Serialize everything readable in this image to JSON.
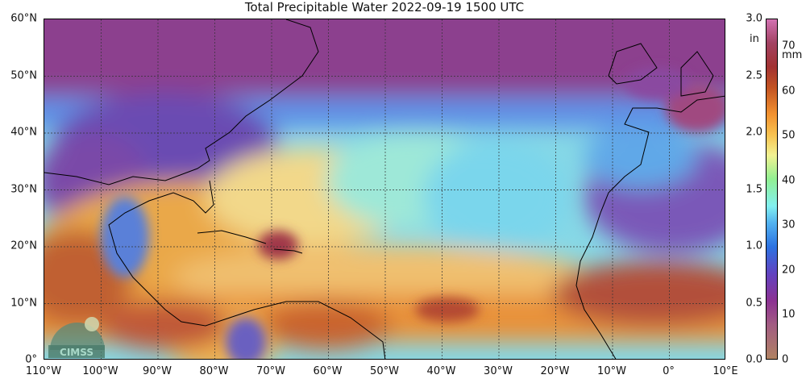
{
  "title": "Total Precipitable Water  2022-09-19 1500 UTC",
  "x_ticks": [
    "110°W",
    "100°W",
    "90°W",
    "80°W",
    "70°W",
    "60°W",
    "50°W",
    "40°W",
    "30°W",
    "20°W",
    "10°W",
    "0°",
    "10°E"
  ],
  "y_ticks": [
    "0°",
    "10°N",
    "20°N",
    "30°N",
    "40°N",
    "50°N",
    "60°N"
  ],
  "colorbar": {
    "in_label": "in",
    "mm_label": "mm",
    "in_ticks": [
      "0.0",
      "0.5",
      "1.0",
      "1.5",
      "2.0",
      "2.5",
      "3.0"
    ],
    "in_values": [
      0,
      0.5,
      1.0,
      1.5,
      2.0,
      2.5,
      3.0
    ],
    "mm_ticks": [
      "0",
      "10",
      "20",
      "30",
      "40",
      "50",
      "60",
      "70"
    ],
    "mm_values": [
      0,
      10,
      20,
      30,
      40,
      50,
      60,
      70
    ],
    "max_mm": 76.2
  },
  "logo_text": "CIMSS"
}
